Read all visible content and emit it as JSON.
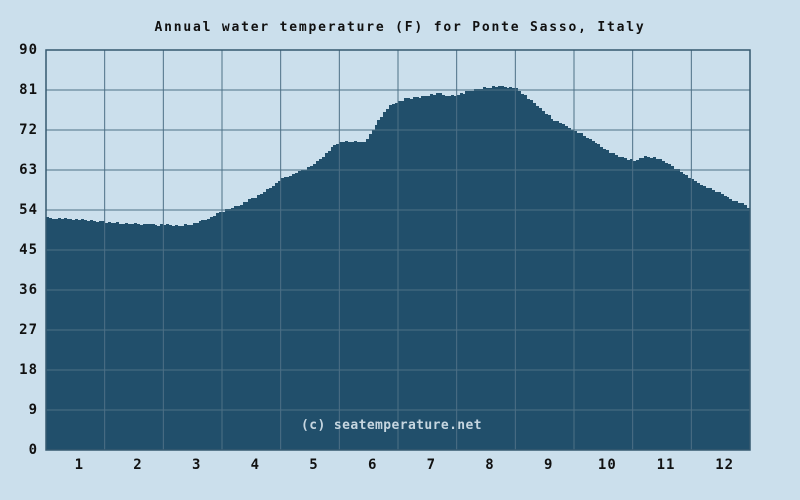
{
  "title": "Annual water temperature (F) for Ponte Sasso, Italy",
  "watermark": "(c) seatemperature.net",
  "colors": {
    "background": "#cbdfec",
    "area_fill": "#214f6b",
    "gridline": "#4d7086",
    "frame": "#35596f",
    "text": "#111111",
    "watermark_text": "#c6d6e0"
  },
  "chart_data": {
    "type": "area",
    "title": "Annual water temperature (F) for Ponte Sasso, Italy",
    "unit": "F",
    "xlabel": "",
    "ylabel": "",
    "grid": true,
    "legend": "none",
    "ylim": [
      0,
      90
    ],
    "y_ticks": [
      0,
      9,
      18,
      27,
      36,
      45,
      54,
      63,
      72,
      81,
      90
    ],
    "x_tick_labels": [
      "1",
      "2",
      "3",
      "4",
      "5",
      "6",
      "7",
      "8",
      "9",
      "10",
      "11",
      "12"
    ],
    "xlim_months": [
      0,
      12
    ],
    "monthly_avg_f": {
      "1": 51.8,
      "2": 51.0,
      "3": 51.1,
      "4": 56.7,
      "5": 65.3,
      "6": 74.0,
      "7": 79.8,
      "8": 81.3,
      "9": 76.4,
      "10": 68.6,
      "11": 63.1,
      "12": 57.4
    },
    "curve_points": [
      [
        0.0,
        52.2
      ],
      [
        0.25,
        52.0
      ],
      [
        0.5,
        51.9
      ],
      [
        0.75,
        51.6
      ],
      [
        1.0,
        51.3
      ],
      [
        1.25,
        51.0
      ],
      [
        1.5,
        50.9
      ],
      [
        1.75,
        50.7
      ],
      [
        2.0,
        50.7
      ],
      [
        2.2,
        50.4
      ],
      [
        2.4,
        50.6
      ],
      [
        2.6,
        51.3
      ],
      [
        2.8,
        52.4
      ],
      [
        3.0,
        53.8
      ],
      [
        3.2,
        54.8
      ],
      [
        3.4,
        55.9
      ],
      [
        3.6,
        57.2
      ],
      [
        3.8,
        59.0
      ],
      [
        4.0,
        61.0
      ],
      [
        4.2,
        62.2
      ],
      [
        4.4,
        63.1
      ],
      [
        4.6,
        64.9
      ],
      [
        4.8,
        67.3
      ],
      [
        4.95,
        69.1
      ],
      [
        5.1,
        69.3
      ],
      [
        5.25,
        69.4
      ],
      [
        5.4,
        69.3
      ],
      [
        5.5,
        71.0
      ],
      [
        5.6,
        73.0
      ],
      [
        5.7,
        75.2
      ],
      [
        5.8,
        76.8
      ],
      [
        5.9,
        78.0
      ],
      [
        6.0,
        78.6
      ],
      [
        6.2,
        79.2
      ],
      [
        6.4,
        79.5
      ],
      [
        6.6,
        80.0
      ],
      [
        6.7,
        80.3
      ],
      [
        6.8,
        79.7
      ],
      [
        6.95,
        79.8
      ],
      [
        7.1,
        80.3
      ],
      [
        7.3,
        81.0
      ],
      [
        7.5,
        81.6
      ],
      [
        7.7,
        81.8
      ],
      [
        7.9,
        81.7
      ],
      [
        8.0,
        81.4
      ],
      [
        8.2,
        79.2
      ],
      [
        8.4,
        76.8
      ],
      [
        8.6,
        74.6
      ],
      [
        8.8,
        73.1
      ],
      [
        9.0,
        71.8
      ],
      [
        9.2,
        70.3
      ],
      [
        9.4,
        68.7
      ],
      [
        9.6,
        67.0
      ],
      [
        9.8,
        65.8
      ],
      [
        10.0,
        65.1
      ],
      [
        10.15,
        65.9
      ],
      [
        10.3,
        66.0
      ],
      [
        10.45,
        65.3
      ],
      [
        10.6,
        64.2
      ],
      [
        10.8,
        62.7
      ],
      [
        11.0,
        60.8
      ],
      [
        11.2,
        59.4
      ],
      [
        11.4,
        58.2
      ],
      [
        11.6,
        56.9
      ],
      [
        11.8,
        55.6
      ],
      [
        12.0,
        54.3
      ]
    ]
  }
}
